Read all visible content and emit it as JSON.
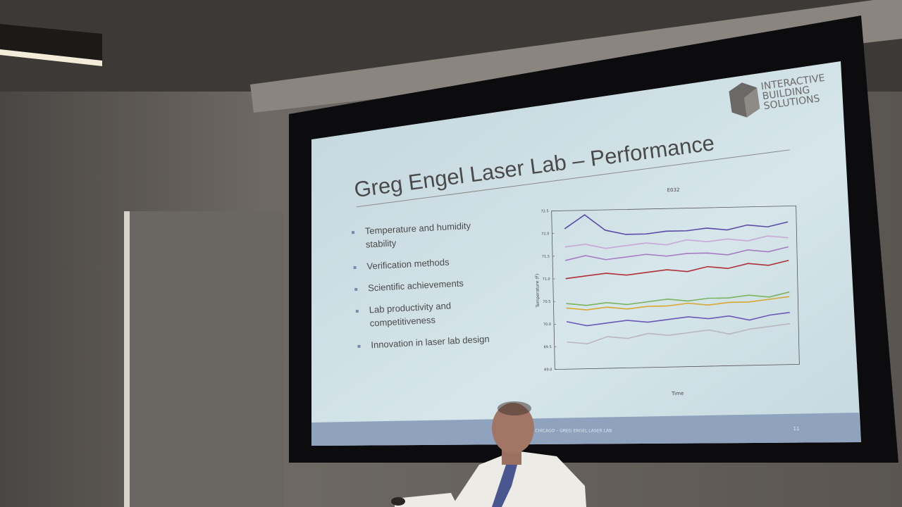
{
  "logo": [
    "INTERACTIVE",
    "BUILDING",
    "SOLUTIONS"
  ],
  "slide": {
    "title": "Greg Engel Laser Lab – Performance",
    "bullets": [
      [
        "Temperature and humidity",
        "stability"
      ],
      [
        "Verification methods"
      ],
      [
        "Scientific achievements"
      ],
      [
        "Lab productivity and",
        "competitiveness"
      ],
      [
        "Innovation in laser lab design"
      ]
    ]
  },
  "footer": {
    "center": "UNIVERSITY OF CHICAGO – GREG ENGEL LASER LAB",
    "page": "11"
  },
  "chart_data": {
    "type": "line",
    "title": "E032",
    "y_label": "Temperature (F)",
    "x_label": "Time",
    "ylim": [
      69.0,
      72.5
    ],
    "yticks": [
      {
        "value": 69.0,
        "label": "69.0"
      },
      69.5,
      {
        "value": 70.0,
        "label": "70.0"
      },
      70.5,
      {
        "value": 71.0,
        "label": "71.0"
      },
      71.5,
      {
        "value": 72.0,
        "label": "72.0"
      },
      72.5
    ],
    "series": [
      {
        "color": "#5a4aa8",
        "values": [
          72.1,
          72.4,
          72.05,
          71.95,
          71.95,
          72.0,
          72.0,
          72.05,
          72.0,
          72.1,
          72.05,
          72.15
        ]
      },
      {
        "color": "#c9a6d6",
        "values": [
          71.7,
          71.75,
          71.65,
          71.7,
          71.75,
          71.7,
          71.8,
          71.75,
          71.8,
          71.75,
          71.85,
          71.8
        ]
      },
      {
        "color": "#a77bc4",
        "values": [
          71.4,
          71.5,
          71.4,
          71.45,
          71.5,
          71.45,
          71.5,
          71.5,
          71.45,
          71.55,
          71.5,
          71.6
        ]
      },
      {
        "color": "#b0303a",
        "values": [
          71.0,
          71.05,
          71.1,
          71.05,
          71.1,
          71.15,
          71.1,
          71.2,
          71.15,
          71.25,
          71.2,
          71.3
        ]
      },
      {
        "color": "#7bb35e",
        "values": [
          70.45,
          70.4,
          70.45,
          70.4,
          70.45,
          70.5,
          70.45,
          70.5,
          70.5,
          70.55,
          70.5,
          70.6
        ]
      },
      {
        "color": "#d8a830",
        "values": [
          70.35,
          70.3,
          70.35,
          70.3,
          70.35,
          70.35,
          70.4,
          70.35,
          70.4,
          70.4,
          70.45,
          70.5
        ]
      },
      {
        "color": "#6a58b8",
        "values": [
          70.05,
          69.95,
          70.0,
          70.05,
          70.0,
          70.05,
          70.1,
          70.05,
          70.1,
          70.0,
          70.1,
          70.15
        ]
      },
      {
        "color": "#b8b8bc",
        "values": [
          69.6,
          69.55,
          69.7,
          69.65,
          69.75,
          69.7,
          69.75,
          69.8,
          69.7,
          69.8,
          69.85,
          69.9
        ]
      }
    ]
  }
}
